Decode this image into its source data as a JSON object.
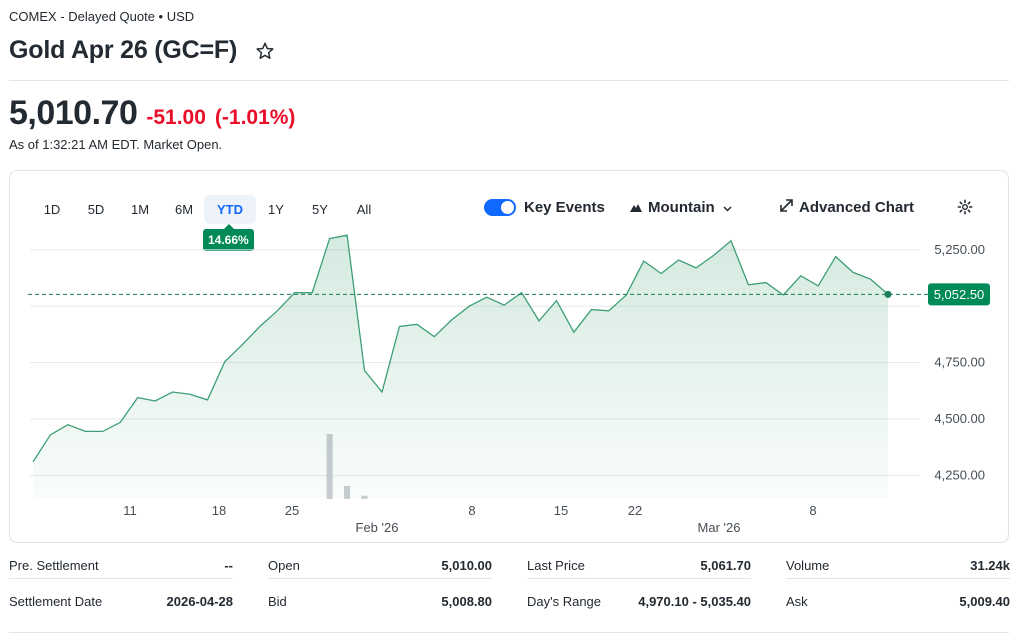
{
  "header": {
    "exchange": "COMEX - Delayed Quote • USD",
    "title": "Gold Apr 26 (GC=F)"
  },
  "quote": {
    "price": "5,010.70",
    "change": "-51.00",
    "change_pct": "(-1.01%)",
    "as_of": "As of 1:32:21 AM EDT. Market Open."
  },
  "ranges": [
    "1D",
    "5D",
    "1M",
    "6M",
    "YTD",
    "1Y",
    "5Y",
    "All"
  ],
  "active_range": "YTD",
  "ytd_badge": "14.66%",
  "controls": {
    "key_events": "Key Events",
    "chart_type": "Mountain",
    "advanced_chart": "Advanced Chart"
  },
  "colors": {
    "accent": "#0f69ff",
    "positive": "#008a58",
    "negative": "#eb0f29",
    "line": "#3d9f74"
  },
  "chart_data": {
    "type": "area",
    "x_tick_labels": [
      "11",
      "18",
      "25",
      "Feb '26",
      "8",
      "15",
      "22",
      "Mar '26",
      "8"
    ],
    "y_tick_labels": [
      "5,250.00",
      "4,750.00",
      "4,500.00",
      "4,250.00"
    ],
    "ylim": [
      4150,
      5400
    ],
    "reference_label": "5,052.50",
    "reference_value": 5052.5,
    "values": [
      4310,
      4430,
      4475,
      4445,
      4445,
      4485,
      4595,
      4580,
      4620,
      4610,
      4585,
      4755,
      4830,
      4910,
      4980,
      5060,
      5060,
      5300,
      5315,
      4715,
      4620,
      4910,
      4920,
      4865,
      4940,
      5000,
      5040,
      5005,
      5060,
      4935,
      5025,
      4885,
      4985,
      4980,
      5050,
      5200,
      5145,
      5205,
      5170,
      5225,
      5290,
      5095,
      5105,
      5050,
      5135,
      5090,
      5220,
      5150,
      5120,
      5052.5
    ],
    "volume": [
      0,
      0,
      0,
      0,
      0,
      0,
      0,
      0,
      0,
      0,
      0,
      0,
      0,
      0,
      0,
      0,
      0,
      1,
      0.2,
      0.05,
      0,
      0,
      0,
      0,
      0,
      0,
      0,
      0,
      0,
      0,
      0,
      0,
      0,
      0,
      0,
      0,
      0,
      0,
      0,
      0,
      0,
      0,
      0,
      0,
      0,
      0,
      0,
      0,
      0,
      0
    ]
  },
  "stats": [
    {
      "label": "Pre. Settlement",
      "value": "--"
    },
    {
      "label": "Settlement Date",
      "value": "2026-04-28"
    },
    {
      "label": "Open",
      "value": "5,010.00"
    },
    {
      "label": "Bid",
      "value": "5,008.80"
    },
    {
      "label": "Last Price",
      "value": "5,061.70"
    },
    {
      "label": "Day's Range",
      "value": "4,970.10 - 5,035.40"
    },
    {
      "label": "Volume",
      "value": "31.24k"
    },
    {
      "label": "Ask",
      "value": "5,009.40"
    }
  ]
}
